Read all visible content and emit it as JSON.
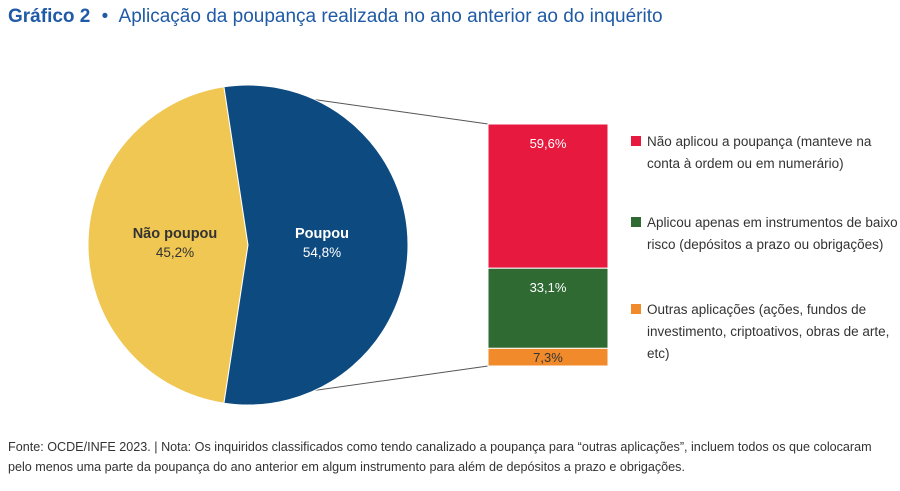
{
  "title": {
    "number": "Gráfico 2",
    "separator": "•",
    "text": "Aplicação da poupança realizada no ano anterior ao do inquérito"
  },
  "chart_data": {
    "type": "bar-of-pie",
    "pie": {
      "slices": [
        {
          "label": "Não poupou",
          "value": 45.2,
          "value_label": "45,2%",
          "color": "#f0c752",
          "text_color": "#333333"
        },
        {
          "label": "Poupou",
          "value": 54.8,
          "value_label": "54,8%",
          "color": "#0d4a80",
          "text_color": "#ffffff"
        }
      ]
    },
    "bar": {
      "parent": "Poupou",
      "segments": [
        {
          "value": 59.6,
          "value_label": "59,6%",
          "color": "#e8193f",
          "legend": [
            "Não aplicou a poupança (manteve na",
            "conta à ordem ou em numerário)"
          ]
        },
        {
          "value": 33.1,
          "value_label": "33,1%",
          "color": "#2e6a32",
          "legend": [
            "Aplicou apenas em instrumentos de baixo",
            "risco (depósitos a prazo ou obrigações)"
          ]
        },
        {
          "value": 7.3,
          "value_label": "7,3%",
          "color": "#f08a2a",
          "legend": [
            "Outras aplicações (ações, fundos de",
            "investimento, criptoativos, obras de arte,",
            "etc)"
          ]
        }
      ]
    }
  },
  "footer": {
    "source": "Fonte: OCDE/INFE 2023.",
    "separator": "|",
    "note": "Nota: Os inquiridos classificados como tendo canalizado a poupança para “outras aplicações”, incluem todos os que colocaram pelo menos uma parte da poupança do ano anterior em algum instrumento para além de depósitos a prazo e obrigações."
  }
}
